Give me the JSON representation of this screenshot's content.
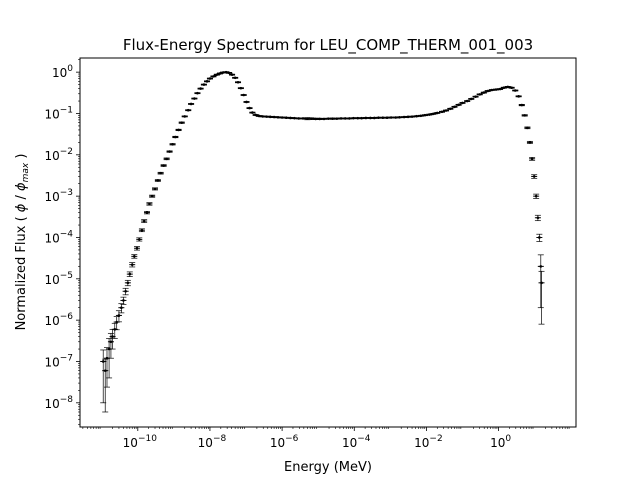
{
  "chart_data": {
    "type": "scatter",
    "title": "Flux-Energy Spectrum for LEU_COMP_THERM_001_003",
    "xlabel": "Energy (MeV)",
    "ylabel_prefix": "Normalized Flux ( ",
    "ylabel_phi": "ϕ",
    "ylabel_slash": " / ",
    "ylabel_sub": "max",
    "ylabel_suffix": " )",
    "x_scale": "log",
    "y_scale": "log",
    "xlim": [
      2.5e-12,
      140
    ],
    "ylim": [
      2.6e-09,
      2.2
    ],
    "grid": false,
    "marker_color": "#000000",
    "x_ticks": [
      {
        "value": 1e-10,
        "base": "10",
        "exp": "−10"
      },
      {
        "value": 1e-08,
        "base": "10",
        "exp": "−8"
      },
      {
        "value": 1e-06,
        "base": "10",
        "exp": "−6"
      },
      {
        "value": 0.0001,
        "base": "10",
        "exp": "−4"
      },
      {
        "value": 0.01,
        "base": "10",
        "exp": "−2"
      },
      {
        "value": 1,
        "base": "10",
        "exp": "0"
      }
    ],
    "y_ticks": [
      {
        "value": 1e-08,
        "base": "10",
        "exp": "−8"
      },
      {
        "value": 1e-07,
        "base": "10",
        "exp": "−7"
      },
      {
        "value": 1e-06,
        "base": "10",
        "exp": "−6"
      },
      {
        "value": 1e-05,
        "base": "10",
        "exp": "−5"
      },
      {
        "value": 0.0001,
        "base": "10",
        "exp": "−4"
      },
      {
        "value": 0.001,
        "base": "10",
        "exp": "−3"
      },
      {
        "value": 0.01,
        "base": "10",
        "exp": "−2"
      },
      {
        "value": 0.1,
        "base": "10",
        "exp": "−1"
      },
      {
        "value": 1,
        "base": "10",
        "exp": "0"
      }
    ],
    "points": [
      [
        1.1e-11,
        1e-07,
        0.9
      ],
      [
        1.25e-11,
        6e-08,
        0.9
      ],
      [
        1.4e-11,
        1.2e-07,
        0.8
      ],
      [
        1.6e-11,
        2e-07,
        0.8
      ],
      [
        1.8e-11,
        3e-07,
        0.6
      ],
      [
        2e-11,
        4e-07,
        0.5
      ],
      [
        2.3e-11,
        6e-07,
        0.4
      ],
      [
        2.6e-11,
        9e-07,
        0.35
      ],
      [
        3e-11,
        1.3e-06,
        0.3
      ],
      [
        3.5e-11,
        2e-06,
        0.25
      ],
      [
        4e-11,
        3e-06,
        0.2
      ],
      [
        4.6e-11,
        5e-06,
        0.18
      ],
      [
        5.3e-11,
        8e-06,
        0.15
      ],
      [
        6e-11,
        1.3e-05,
        0.13
      ],
      [
        7e-11,
        2.2e-05,
        0.12
      ],
      [
        8e-11,
        3.5e-05,
        0.1
      ],
      [
        9.5e-11,
        5.5e-05,
        0.1
      ],
      [
        1.1e-10,
        9e-05,
        0.09
      ],
      [
        1.3e-10,
        0.00015,
        0.08
      ],
      [
        1.5e-10,
        0.00025,
        0.08
      ],
      [
        1.8e-10,
        0.0004,
        0.07
      ],
      [
        2.1e-10,
        0.00065,
        0.07
      ],
      [
        2.5e-10,
        0.001,
        0.06
      ],
      [
        3e-10,
        0.0015,
        0.06
      ],
      [
        3.6e-10,
        0.0024,
        0.05
      ],
      [
        4.3e-10,
        0.0036,
        0.05
      ],
      [
        5.2e-10,
        0.0055,
        0.05
      ],
      [
        6.3e-10,
        0.008,
        0.05
      ],
      [
        7.6e-10,
        0.012,
        0.04
      ],
      [
        9.2e-10,
        0.018,
        0.04
      ],
      [
        1.1e-09,
        0.027,
        0.04
      ],
      [
        1.35e-09,
        0.04,
        0.04
      ],
      [
        1.65e-09,
        0.06,
        0.04
      ],
      [
        2e-09,
        0.085,
        0.03
      ],
      [
        2.5e-09,
        0.12,
        0.03
      ],
      [
        3e-09,
        0.17,
        0.03
      ],
      [
        3.7e-09,
        0.23,
        0.03
      ],
      [
        4.5e-09,
        0.31,
        0.03
      ],
      [
        5.5e-09,
        0.4,
        0.03
      ],
      [
        6.8e-09,
        0.5,
        0.03
      ],
      [
        8.3e-09,
        0.6,
        0.03
      ],
      [
        1e-08,
        0.7,
        0.03
      ],
      [
        1.25e-08,
        0.79,
        0.03
      ],
      [
        1.55e-08,
        0.87,
        0.03
      ],
      [
        1.9e-08,
        0.93,
        0.03
      ],
      [
        2.3e-08,
        0.98,
        0.03
      ],
      [
        2.8e-08,
        1.0,
        0.03
      ],
      [
        3.4e-08,
        0.96,
        0.03
      ],
      [
        4.1e-08,
        0.87,
        0.03
      ],
      [
        5e-08,
        0.73,
        0.03
      ],
      [
        6e-08,
        0.57,
        0.03
      ],
      [
        7.2e-08,
        0.41,
        0.03
      ],
      [
        8.6e-08,
        0.28,
        0.03
      ],
      [
        1.03e-07,
        0.19,
        0.03
      ],
      [
        1.25e-07,
        0.135,
        0.03
      ],
      [
        1.5e-07,
        0.105,
        0.03
      ],
      [
        1.85e-07,
        0.092,
        0.03
      ],
      [
        2.3e-07,
        0.087,
        0.03
      ],
      [
        2.9e-07,
        0.085,
        0.03
      ],
      [
        3.7e-07,
        0.084,
        0.03
      ],
      [
        4.7e-07,
        0.083,
        0.03
      ],
      [
        6e-07,
        0.082,
        0.03
      ],
      [
        7.7e-07,
        0.081,
        0.03
      ],
      [
        1e-06,
        0.08,
        0.03
      ],
      [
        1.3e-06,
        0.079,
        0.03
      ],
      [
        1.7e-06,
        0.078,
        0.03
      ],
      [
        2.2e-06,
        0.077,
        0.03
      ],
      [
        2.9e-06,
        0.076,
        0.03
      ],
      [
        3.8e-06,
        0.076,
        0.03
      ],
      [
        5e-06,
        0.075,
        0.06
      ],
      [
        6.5e-06,
        0.075,
        0.05
      ],
      [
        8.5e-06,
        0.074,
        0.04
      ],
      [
        1.1e-05,
        0.074,
        0.04
      ],
      [
        1.45e-05,
        0.074,
        0.03
      ],
      [
        1.9e-05,
        0.075,
        0.03
      ],
      [
        2.5e-05,
        0.075,
        0.04
      ],
      [
        3.3e-05,
        0.075,
        0.03
      ],
      [
        4.3e-05,
        0.076,
        0.03
      ],
      [
        5.6e-05,
        0.076,
        0.03
      ],
      [
        7.3e-05,
        0.076,
        0.03
      ],
      [
        9.5e-05,
        0.077,
        0.03
      ],
      [
        0.000125,
        0.077,
        0.03
      ],
      [
        0.00016,
        0.077,
        0.03
      ],
      [
        0.00021,
        0.078,
        0.03
      ],
      [
        0.00028,
        0.078,
        0.03
      ],
      [
        0.00036,
        0.078,
        0.03
      ],
      [
        0.00047,
        0.079,
        0.03
      ],
      [
        0.00062,
        0.079,
        0.03
      ],
      [
        0.00081,
        0.079,
        0.03
      ],
      [
        0.00105,
        0.08,
        0.03
      ],
      [
        0.0014,
        0.08,
        0.03
      ],
      [
        0.0018,
        0.081,
        0.03
      ],
      [
        0.0024,
        0.082,
        0.03
      ],
      [
        0.0031,
        0.083,
        0.03
      ],
      [
        0.004,
        0.084,
        0.03
      ],
      [
        0.0053,
        0.086,
        0.03
      ],
      [
        0.007,
        0.088,
        0.03
      ],
      [
        0.0091,
        0.091,
        0.03
      ],
      [
        0.012,
        0.094,
        0.03
      ],
      [
        0.0155,
        0.098,
        0.03
      ],
      [
        0.02,
        0.103,
        0.03
      ],
      [
        0.027,
        0.11,
        0.03
      ],
      [
        0.035,
        0.118,
        0.03
      ],
      [
        0.046,
        0.13,
        0.03
      ],
      [
        0.06,
        0.145,
        0.03
      ],
      [
        0.078,
        0.162,
        0.03
      ],
      [
        0.1,
        0.18,
        0.03
      ],
      [
        0.135,
        0.2,
        0.03
      ],
      [
        0.175,
        0.225,
        0.03
      ],
      [
        0.23,
        0.255,
        0.03
      ],
      [
        0.3,
        0.29,
        0.03
      ],
      [
        0.39,
        0.32,
        0.03
      ],
      [
        0.5,
        0.35,
        0.03
      ],
      [
        0.65,
        0.37,
        0.03
      ],
      [
        0.85,
        0.38,
        0.03
      ],
      [
        1.1,
        0.39,
        0.03
      ],
      [
        1.4,
        0.42,
        0.03
      ],
      [
        1.8,
        0.44,
        0.03
      ],
      [
        2.3,
        0.42,
        0.03
      ],
      [
        2.9,
        0.36,
        0.03
      ],
      [
        3.6,
        0.26,
        0.03
      ],
      [
        4.4,
        0.16,
        0.04
      ],
      [
        5.3,
        0.09,
        0.04
      ],
      [
        6.3,
        0.045,
        0.05
      ],
      [
        7.4,
        0.02,
        0.06
      ],
      [
        8.5,
        0.008,
        0.08
      ],
      [
        9.7,
        0.003,
        0.1
      ],
      [
        11.0,
        0.001,
        0.12
      ],
      [
        12.3,
        0.0003,
        0.15
      ],
      [
        13.5,
        0.0001,
        0.2
      ],
      [
        14.8,
        2e-05,
        0.9
      ],
      [
        15.5,
        8e-06,
        0.9
      ]
    ]
  }
}
